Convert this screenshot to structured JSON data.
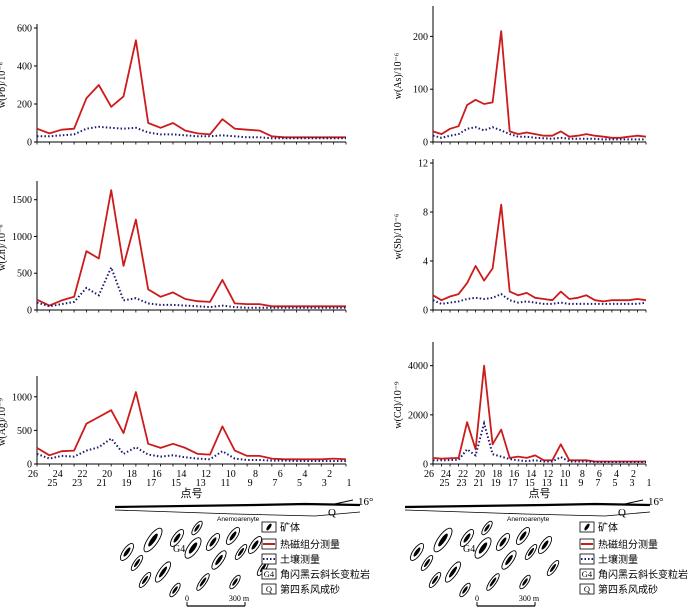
{
  "colors": {
    "heat": "#cc1b1b",
    "soil": "#1a1a6e",
    "axis": "#000000"
  },
  "x_title": "点号",
  "point_ticks_upper": [
    "26",
    "24",
    "22",
    "20",
    "18",
    "16",
    "14",
    "12",
    "10",
    "8",
    "6",
    "4",
    "2"
  ],
  "point_ticks_lower": [
    "25",
    "23",
    "21",
    "19",
    "17",
    "15",
    "13",
    "11",
    "9",
    "7",
    "5",
    "3",
    "1"
  ],
  "chart_data": [
    {
      "type": "line",
      "element": "Pb",
      "ylabel": "w(Pb)/10⁻⁶",
      "ylim": [
        0,
        600
      ],
      "yticks": [
        0,
        200,
        400,
        600
      ],
      "x": [
        26,
        25,
        24,
        23,
        22,
        21,
        20,
        19,
        18,
        17,
        16,
        15,
        14,
        13,
        12,
        11,
        10,
        9,
        8,
        7,
        6,
        5,
        4,
        3,
        2,
        1
      ],
      "series": [
        {
          "name": "热磁组分测量",
          "values": [
            70,
            45,
            65,
            70,
            230,
            300,
            185,
            240,
            535,
            100,
            75,
            100,
            60,
            45,
            40,
            120,
            70,
            65,
            60,
            30,
            25,
            25,
            25,
            25,
            25,
            25
          ]
        },
        {
          "name": "土壤测量",
          "values": [
            30,
            30,
            35,
            40,
            70,
            80,
            75,
            70,
            75,
            50,
            40,
            40,
            35,
            30,
            30,
            35,
            30,
            25,
            25,
            20,
            20,
            20,
            20,
            20,
            20,
            20
          ]
        }
      ]
    },
    {
      "type": "line",
      "element": "As",
      "ylabel": "w(As)/10⁻⁶",
      "ylim": [
        0,
        250
      ],
      "yticks": [
        0,
        100,
        200
      ],
      "x": [
        26,
        25,
        24,
        23,
        22,
        21,
        20,
        19,
        18,
        17,
        16,
        15,
        14,
        13,
        12,
        11,
        10,
        9,
        8,
        7,
        6,
        5,
        4,
        3,
        2,
        1
      ],
      "series": [
        {
          "name": "热磁组分测量",
          "values": [
            20,
            15,
            25,
            30,
            70,
            80,
            72,
            75,
            210,
            20,
            15,
            18,
            15,
            12,
            12,
            20,
            10,
            12,
            15,
            12,
            10,
            8,
            8,
            10,
            12,
            10
          ]
        },
        {
          "name": "土壤测量",
          "values": [
            12,
            8,
            12,
            15,
            25,
            28,
            22,
            28,
            22,
            15,
            10,
            10,
            8,
            7,
            6,
            8,
            6,
            6,
            6,
            6,
            5,
            5,
            5,
            5,
            5,
            5
          ]
        }
      ]
    },
    {
      "type": "line",
      "element": "Zn",
      "ylabel": "w(Zn)/10⁻⁶",
      "ylim": [
        0,
        1700
      ],
      "yticks": [
        0,
        500,
        1000,
        1500
      ],
      "x": [
        26,
        25,
        24,
        23,
        22,
        21,
        20,
        19,
        18,
        17,
        16,
        15,
        14,
        13,
        12,
        11,
        10,
        9,
        8,
        7,
        6,
        5,
        4,
        3,
        2,
        1
      ],
      "series": [
        {
          "name": "热磁组分测量",
          "values": [
            140,
            60,
            130,
            180,
            800,
            700,
            1630,
            600,
            1230,
            280,
            180,
            240,
            150,
            120,
            110,
            410,
            90,
            80,
            80,
            50,
            50,
            50,
            50,
            50,
            50,
            50
          ]
        },
        {
          "name": "土壤测量",
          "values": [
            100,
            50,
            80,
            110,
            300,
            200,
            580,
            130,
            160,
            90,
            70,
            70,
            60,
            50,
            40,
            60,
            40,
            30,
            30,
            30,
            30,
            30,
            30,
            30,
            30,
            30
          ]
        }
      ]
    },
    {
      "type": "line",
      "element": "Sb",
      "ylabel": "w(Sb)/10⁻⁶",
      "ylim": [
        0,
        12
      ],
      "yticks": [
        0,
        4,
        8,
        12
      ],
      "x": [
        26,
        25,
        24,
        23,
        22,
        21,
        20,
        19,
        18,
        17,
        16,
        15,
        14,
        13,
        12,
        11,
        10,
        9,
        8,
        7,
        6,
        5,
        4,
        3,
        2,
        1
      ],
      "series": [
        {
          "name": "热磁组分测量",
          "values": [
            1.2,
            0.8,
            1.1,
            1.3,
            2.2,
            3.6,
            2.4,
            3.4,
            8.6,
            1.5,
            1.2,
            1.4,
            1.0,
            0.9,
            0.8,
            1.5,
            0.9,
            1.0,
            1.2,
            0.8,
            0.7,
            0.8,
            0.8,
            0.8,
            0.9,
            0.8
          ]
        },
        {
          "name": "土壤测量",
          "values": [
            0.8,
            0.5,
            0.6,
            0.7,
            0.9,
            1.0,
            0.9,
            1.0,
            1.3,
            0.8,
            0.6,
            0.7,
            0.6,
            0.5,
            0.5,
            0.6,
            0.5,
            0.5,
            0.5,
            0.5,
            0.5,
            0.5,
            0.5,
            0.5,
            0.5,
            0.6
          ]
        }
      ]
    },
    {
      "type": "line",
      "element": "Ag",
      "ylabel": "w(Ag)/10⁻⁹",
      "ylim": [
        0,
        1250
      ],
      "yticks": [
        0,
        500,
        1000
      ],
      "x": [
        26,
        25,
        24,
        23,
        22,
        21,
        20,
        19,
        18,
        17,
        16,
        15,
        14,
        13,
        12,
        11,
        10,
        9,
        8,
        7,
        6,
        5,
        4,
        3,
        2,
        1
      ],
      "series": [
        {
          "name": "热磁组分测量",
          "values": [
            240,
            130,
            190,
            200,
            600,
            700,
            800,
            460,
            1070,
            300,
            240,
            300,
            240,
            150,
            140,
            560,
            200,
            120,
            120,
            80,
            70,
            70,
            70,
            70,
            80,
            70
          ]
        },
        {
          "name": "土壤测量",
          "values": [
            150,
            80,
            120,
            110,
            200,
            250,
            380,
            150,
            250,
            140,
            110,
            130,
            100,
            80,
            70,
            190,
            80,
            60,
            60,
            50,
            50,
            45,
            45,
            45,
            45,
            45
          ]
        }
      ]
    },
    {
      "type": "line",
      "element": "Cd",
      "ylabel": "w(Cd)/10⁻⁹",
      "ylim": [
        0,
        4800
      ],
      "yticks": [
        0,
        2000,
        4000
      ],
      "x": [
        26,
        25,
        24,
        23,
        22,
        21,
        20,
        19,
        18,
        17,
        16,
        15,
        14,
        13,
        12,
        11,
        10,
        9,
        8,
        7,
        6,
        5,
        4,
        3,
        2,
        1
      ],
      "series": [
        {
          "name": "热磁组分测量",
          "values": [
            250,
            220,
            230,
            250,
            1700,
            600,
            4000,
            800,
            1400,
            250,
            300,
            250,
            350,
            150,
            150,
            800,
            150,
            150,
            150,
            100,
            100,
            100,
            100,
            100,
            100,
            100
          ]
        },
        {
          "name": "土壤测量",
          "values": [
            150,
            150,
            160,
            170,
            600,
            350,
            1650,
            400,
            300,
            200,
            150,
            120,
            150,
            100,
            100,
            280,
            100,
            100,
            100,
            80,
            80,
            80,
            80,
            80,
            80,
            80
          ]
        }
      ]
    }
  ],
  "section": {
    "dip": "16°",
    "contact_label": "Anemoarenyte",
    "unit_label": "G4",
    "q_label": "Q",
    "scale_start": "0",
    "scale_end": "300 m"
  },
  "legend": [
    {
      "key": "ore",
      "symbol": "",
      "label": "矿体"
    },
    {
      "key": "heat",
      "symbol": "",
      "label": "热磁组分测量"
    },
    {
      "key": "soil",
      "symbol": "",
      "label": "土壤测量"
    },
    {
      "key": "g4",
      "symbol": "G4",
      "label": "角闪黑云斜长变粒岩"
    },
    {
      "key": "q",
      "symbol": "Q",
      "label": "第四系风成砂"
    }
  ]
}
